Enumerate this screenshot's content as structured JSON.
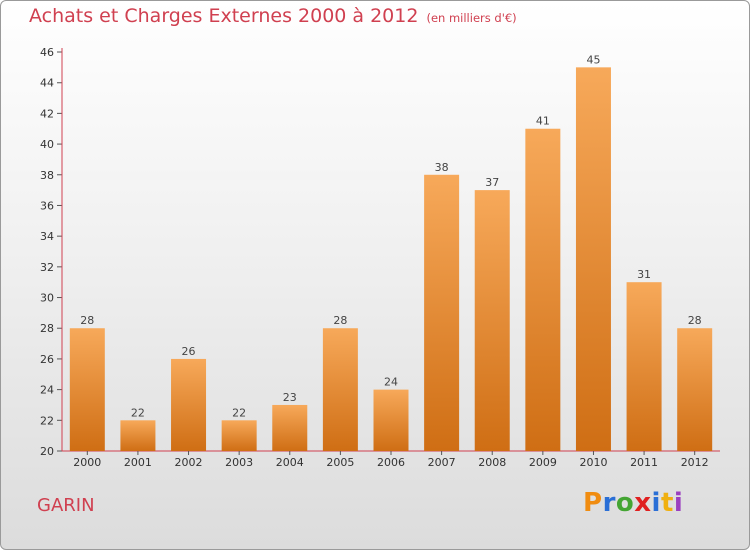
{
  "title": "Achats et Charges Externes 2000 à 2012",
  "title_unit": "(en milliers d'€)",
  "commune": "GARIN",
  "logo": "Proxiti",
  "colors": {
    "title": "#d04050",
    "bar_top": "#f7a95a",
    "bar_bottom": "#cf6e14",
    "axis": "#d04050"
  },
  "chart_data": {
    "type": "bar",
    "categories": [
      "2000",
      "2001",
      "2002",
      "2003",
      "2004",
      "2005",
      "2006",
      "2007",
      "2008",
      "2009",
      "2010",
      "2011",
      "2012"
    ],
    "values": [
      28,
      22,
      26,
      22,
      23,
      28,
      24,
      38,
      37,
      41,
      45,
      31,
      28
    ],
    "ylim": [
      20,
      46
    ],
    "yticks": [
      20,
      22,
      24,
      26,
      28,
      30,
      32,
      34,
      36,
      38,
      40,
      42,
      44,
      46
    ],
    "grid": false,
    "xlabel": "",
    "ylabel": ""
  }
}
